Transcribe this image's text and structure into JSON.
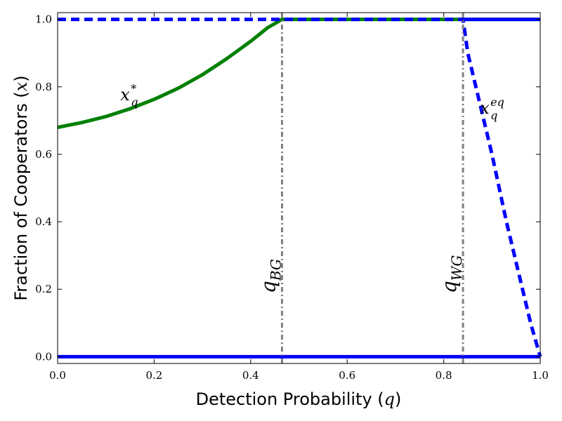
{
  "chart_data": {
    "type": "line",
    "title": "",
    "xlabel": "Detection Probability (q)",
    "ylabel": "Fraction of Cooperators (x)",
    "xlim": [
      0,
      1
    ],
    "ylim": [
      -0.02,
      1.02
    ],
    "grid": false,
    "legend": "none",
    "x_ticks": [
      "0.0",
      "0.2",
      "0.4",
      "0.6",
      "0.8",
      "1.0"
    ],
    "y_ticks": [
      "0.0",
      "0.2",
      "0.4",
      "0.6",
      "0.8",
      "1.0"
    ],
    "series": [
      {
        "style": "solid",
        "color": "#008000",
        "points": [
          [
            0,
            0.68
          ],
          [
            0.05,
            0.694
          ],
          [
            0.1,
            0.712
          ],
          [
            0.15,
            0.735
          ],
          [
            0.2,
            0.763
          ],
          [
            0.25,
            0.796
          ],
          [
            0.3,
            0.836
          ],
          [
            0.35,
            0.883
          ],
          [
            0.4,
            0.935
          ],
          [
            0.435,
            0.975
          ],
          [
            0.465,
            1.0
          ],
          [
            1.0,
            1.0
          ]
        ]
      },
      {
        "style": "dashed",
        "color": "#0000ff",
        "points": [
          [
            0,
            1.0
          ],
          [
            0.84,
            1.0
          ],
          [
            0.85,
            0.9
          ],
          [
            0.87,
            0.78
          ],
          [
            0.9,
            0.6
          ],
          [
            0.93,
            0.4
          ],
          [
            0.96,
            0.22
          ],
          [
            0.98,
            0.1
          ],
          [
            1.0,
            0.0
          ]
        ]
      },
      {
        "style": "solid",
        "color": "#0000ff",
        "points": [
          [
            0,
            0.0
          ],
          [
            1.0,
            0.0
          ]
        ]
      },
      {
        "style": "solid",
        "color": "#0000ff",
        "points": [
          [
            0.84,
            1.0
          ],
          [
            1.0,
            1.0
          ]
        ]
      }
    ],
    "vlines": [
      {
        "x": 0.465,
        "label": "q_BG",
        "color": "#808080"
      },
      {
        "x": 0.84,
        "label": "q_WG",
        "color": "#808080"
      }
    ],
    "annotations": [
      {
        "base": "x",
        "sup": "*",
        "sub": "q",
        "x": 0.13,
        "y": 0.76
      },
      {
        "base": "x",
        "sup": "eq",
        "sub": "q",
        "x": 0.875,
        "y": 0.72
      }
    ]
  }
}
